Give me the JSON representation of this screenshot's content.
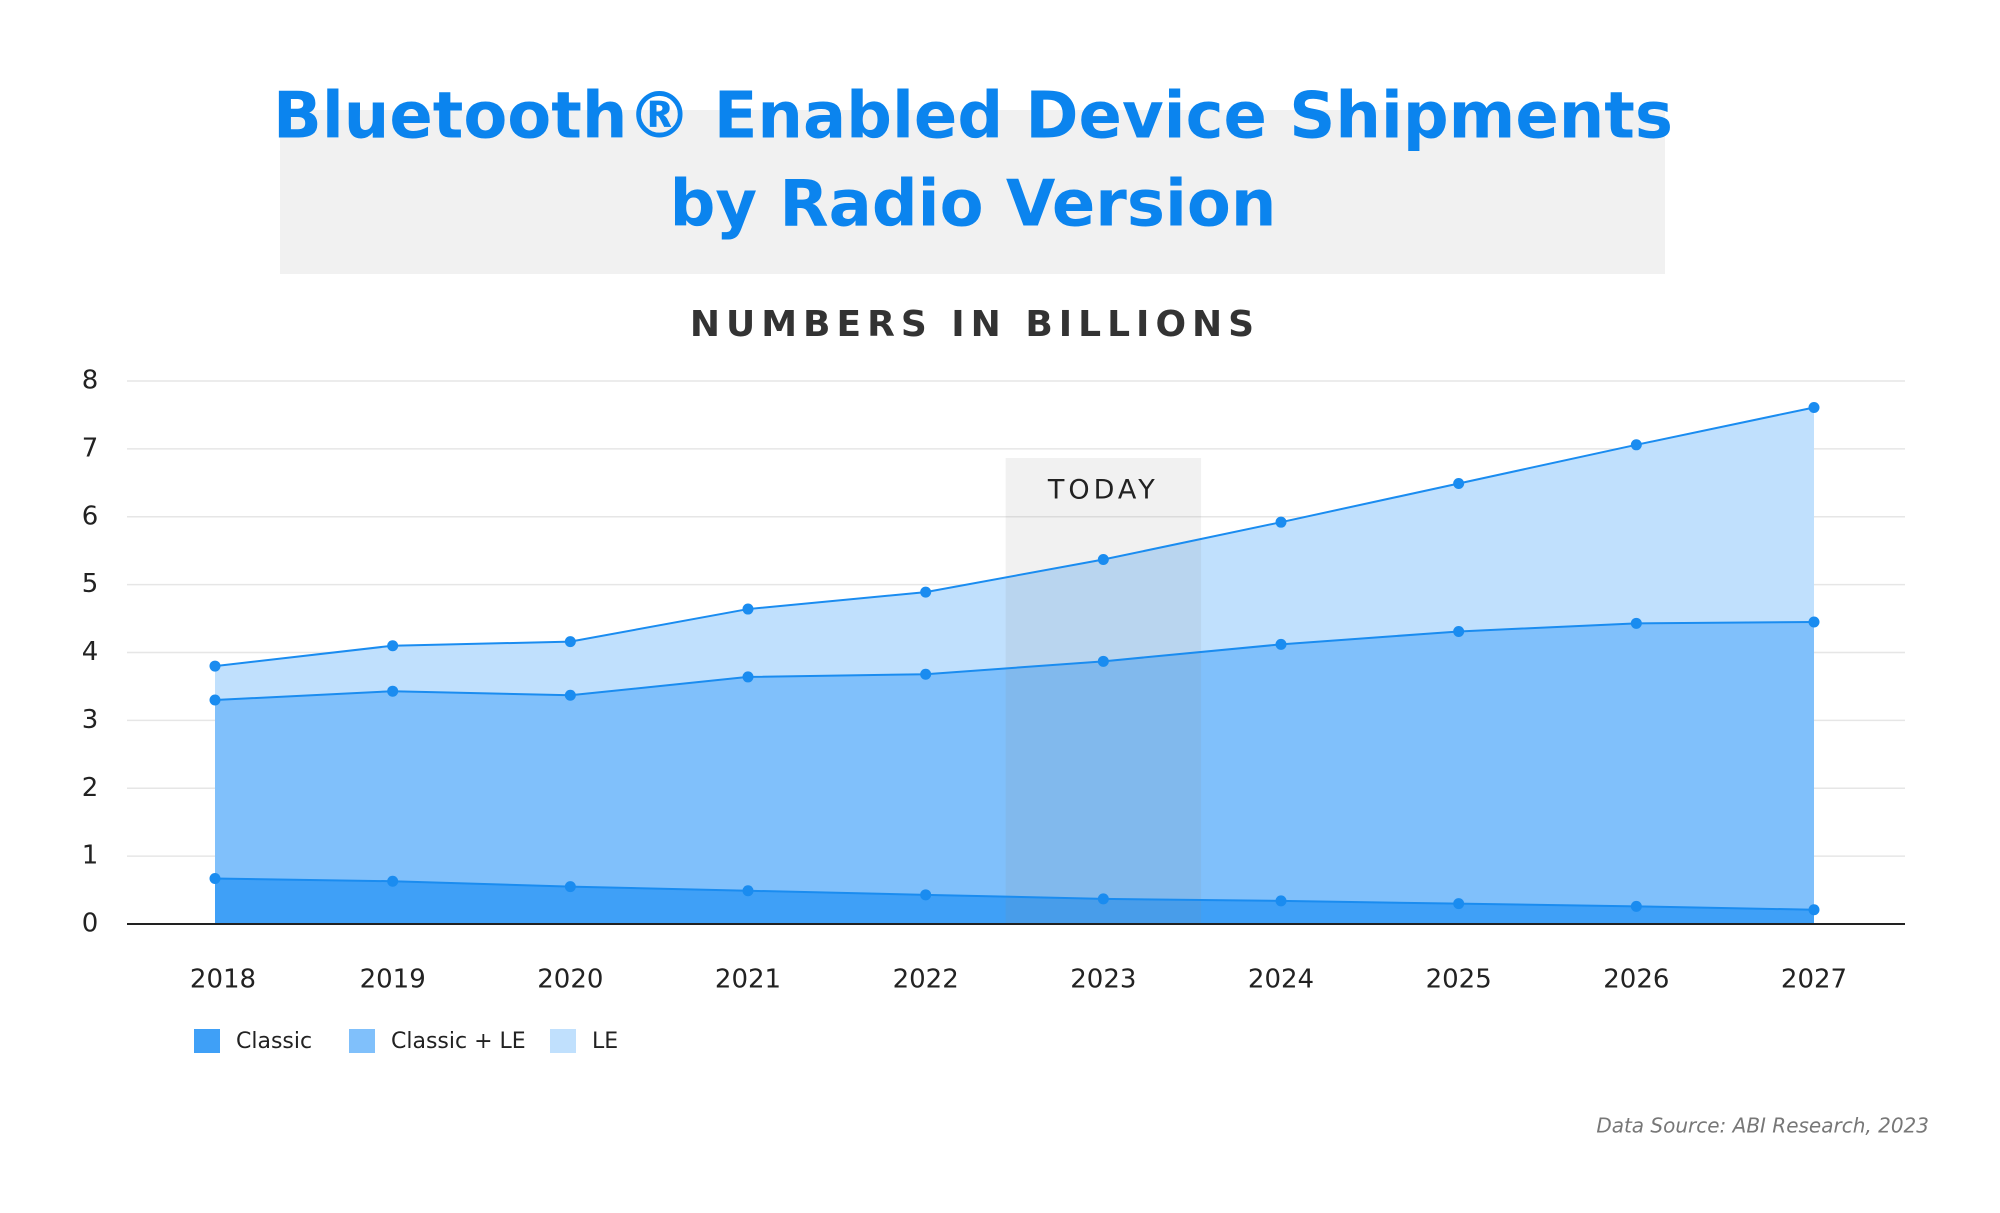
{
  "chart_data": {
    "type": "stacked_area",
    "title": [
      "Bluetooth® Enabled Device Shipments",
      "by Radio Version"
    ],
    "subtitle": "NUMBERS IN BILLIONS",
    "annotation": {
      "text": "TODAY",
      "category": "2023"
    },
    "source": "Data Source: ABI Research, 2023",
    "categories": [
      "2018",
      "2019",
      "2020",
      "2021",
      "2022",
      "2023",
      "2024",
      "2025",
      "2026",
      "2027"
    ],
    "series": [
      {
        "name": "Classic",
        "color": "#3fa0f7",
        "values": [
          0.67,
          0.63,
          0.55,
          0.49,
          0.43,
          0.37,
          0.34,
          0.3,
          0.26,
          0.21
        ]
      },
      {
        "name": "Classic + LE",
        "color": "#80c0fb",
        "values": [
          2.63,
          2.8,
          2.82,
          3.15,
          3.25,
          3.5,
          3.78,
          4.01,
          4.17,
          4.24
        ]
      },
      {
        "name": "LE",
        "color": "#c0e0fd",
        "values": [
          0.5,
          0.67,
          0.79,
          1.0,
          1.21,
          1.5,
          1.8,
          2.18,
          2.63,
          3.16
        ]
      }
    ],
    "line_color": "#1a8cf0",
    "ylim": [
      0,
      8
    ],
    "yticks": [
      0,
      1,
      2,
      3,
      4,
      5,
      6,
      7,
      8
    ],
    "grid": true
  }
}
